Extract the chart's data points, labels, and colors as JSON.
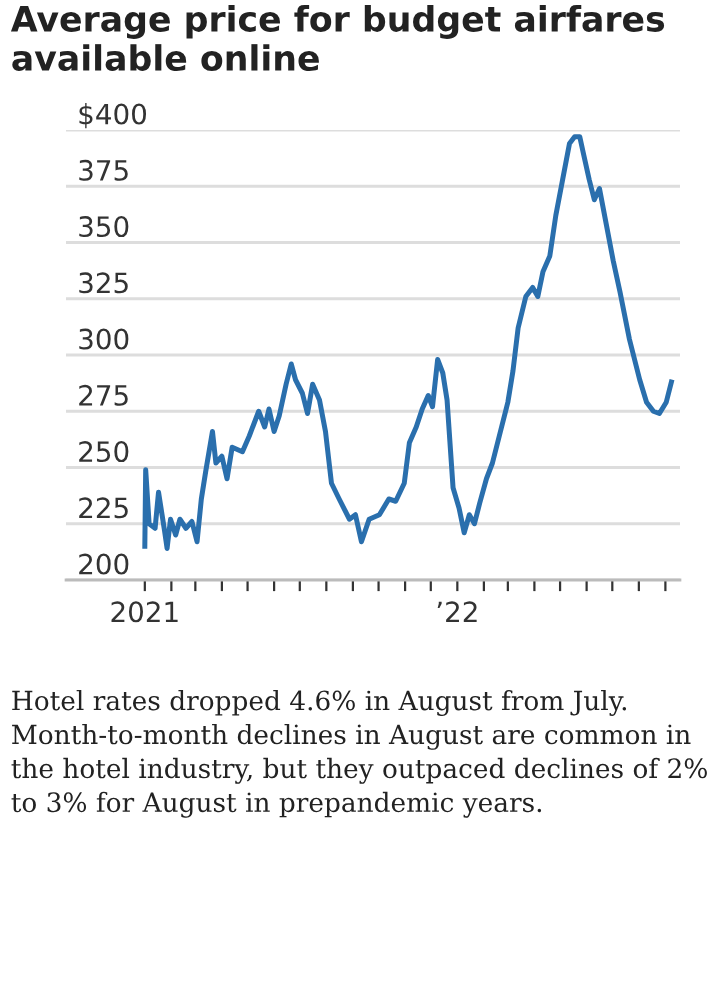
{
  "chart_data": {
    "type": "line",
    "title": "Average price for budget airfares available online",
    "x": [
      "2021-01-01",
      "2021-01-02",
      "2021-01-06",
      "2021-01-13",
      "2021-01-17",
      "2021-01-24",
      "2021-01-27",
      "2021-01-31",
      "2021-02-06",
      "2021-02-11",
      "2021-02-18",
      "2021-02-25",
      "2021-03-03",
      "2021-03-08",
      "2021-03-13",
      "2021-03-21",
      "2021-03-25",
      "2021-04-01",
      "2021-04-07",
      "2021-04-13",
      "2021-04-25",
      "2021-05-03",
      "2021-05-14",
      "2021-05-21",
      "2021-05-26",
      "2021-06-01",
      "2021-06-07",
      "2021-06-15",
      "2021-06-21",
      "2021-06-26",
      "2021-07-04",
      "2021-07-10",
      "2021-07-16",
      "2021-07-24",
      "2021-07-31",
      "2021-08-07",
      "2021-08-16",
      "2021-08-28",
      "2021-09-04",
      "2021-09-11",
      "2021-09-20",
      "2021-10-02",
      "2021-10-13",
      "2021-10-21",
      "2021-10-31",
      "2021-11-06",
      "2021-11-14",
      "2021-11-21",
      "2021-11-28",
      "2021-12-03",
      "2021-12-09",
      "2021-12-15",
      "2021-12-20",
      "2021-12-27",
      "2022-01-03",
      "2022-01-09",
      "2022-01-15",
      "2022-01-21",
      "2022-01-27",
      "2022-02-04",
      "2022-02-11",
      "2022-02-19",
      "2022-03-01",
      "2022-03-07",
      "2022-03-13",
      "2022-03-22",
      "2022-03-30",
      "2022-04-05",
      "2022-04-11",
      "2022-04-19",
      "2022-04-26",
      "2022-05-04",
      "2022-05-12",
      "2022-05-18",
      "2022-05-24",
      "2022-05-28",
      "2022-06-04",
      "2022-06-10",
      "2022-06-16",
      "2022-06-24",
      "2022-07-02",
      "2022-07-10",
      "2022-07-21",
      "2022-08-02",
      "2022-08-10",
      "2022-08-18",
      "2022-08-25",
      "2022-09-02",
      "2022-09-08"
    ],
    "series": [
      {
        "color": "#2a6fad",
        "values": [
          215,
          249,
          225,
          223,
          239,
          222,
          214,
          227,
          220,
          227,
          223,
          226,
          217,
          236,
          248,
          266,
          252,
          255,
          245,
          259,
          257,
          264,
          275,
          268,
          276,
          266,
          273,
          287,
          296,
          289,
          283,
          274,
          287,
          280,
          266,
          243,
          236,
          227,
          229,
          217,
          227,
          229,
          236,
          235,
          243,
          261,
          268,
          276,
          282,
          277,
          298,
          292,
          280,
          241,
          232,
          221,
          229,
          225,
          234,
          245,
          252,
          264,
          279,
          293,
          312,
          326,
          330,
          326,
          337,
          344,
          362,
          378,
          394,
          397,
          397,
          390,
          378,
          369,
          374,
          358,
          342,
          328,
          307,
          289,
          279,
          275,
          274,
          279,
          288
        ]
      }
    ],
    "xlim": [
      "2020-10-01",
      "2022-09-18"
    ],
    "xticks": [
      {
        "value": "2021-01-01",
        "label": "2021"
      },
      {
        "value": "2021-02-01",
        "label": null
      },
      {
        "value": "2021-03-01",
        "label": null
      },
      {
        "value": "2021-04-01",
        "label": null
      },
      {
        "value": "2021-05-01",
        "label": null
      },
      {
        "value": "2021-06-01",
        "label": null
      },
      {
        "value": "2021-07-01",
        "label": null
      },
      {
        "value": "2021-08-01",
        "label": null
      },
      {
        "value": "2021-09-01",
        "label": null
      },
      {
        "value": "2021-10-01",
        "label": null
      },
      {
        "value": "2021-11-01",
        "label": null
      },
      {
        "value": "2021-12-01",
        "label": null
      },
      {
        "value": "2022-01-01",
        "label": "’22"
      },
      {
        "value": "2022-02-01",
        "label": null
      },
      {
        "value": "2022-03-01",
        "label": null
      },
      {
        "value": "2022-04-01",
        "label": null
      },
      {
        "value": "2022-05-01",
        "label": null
      },
      {
        "value": "2022-06-01",
        "label": null
      },
      {
        "value": "2022-07-01",
        "label": null
      },
      {
        "value": "2022-08-01",
        "label": null
      },
      {
        "value": "2022-09-01",
        "label": null
      }
    ],
    "ylim": [
      200,
      400
    ],
    "yticks": [
      200,
      225,
      250,
      275,
      300,
      325,
      350,
      375,
      {
        "value": 400,
        "label": "$400"
      }
    ],
    "grid": "y",
    "line_style": "solid",
    "marker": "none",
    "annotations": [
      "Hotel rates dropped 4.6% in August from July. Month-to-month declines in August are common in the hotel industry, but they outpaced declines of 2% to 3% for August in prepandemic years."
    ]
  }
}
